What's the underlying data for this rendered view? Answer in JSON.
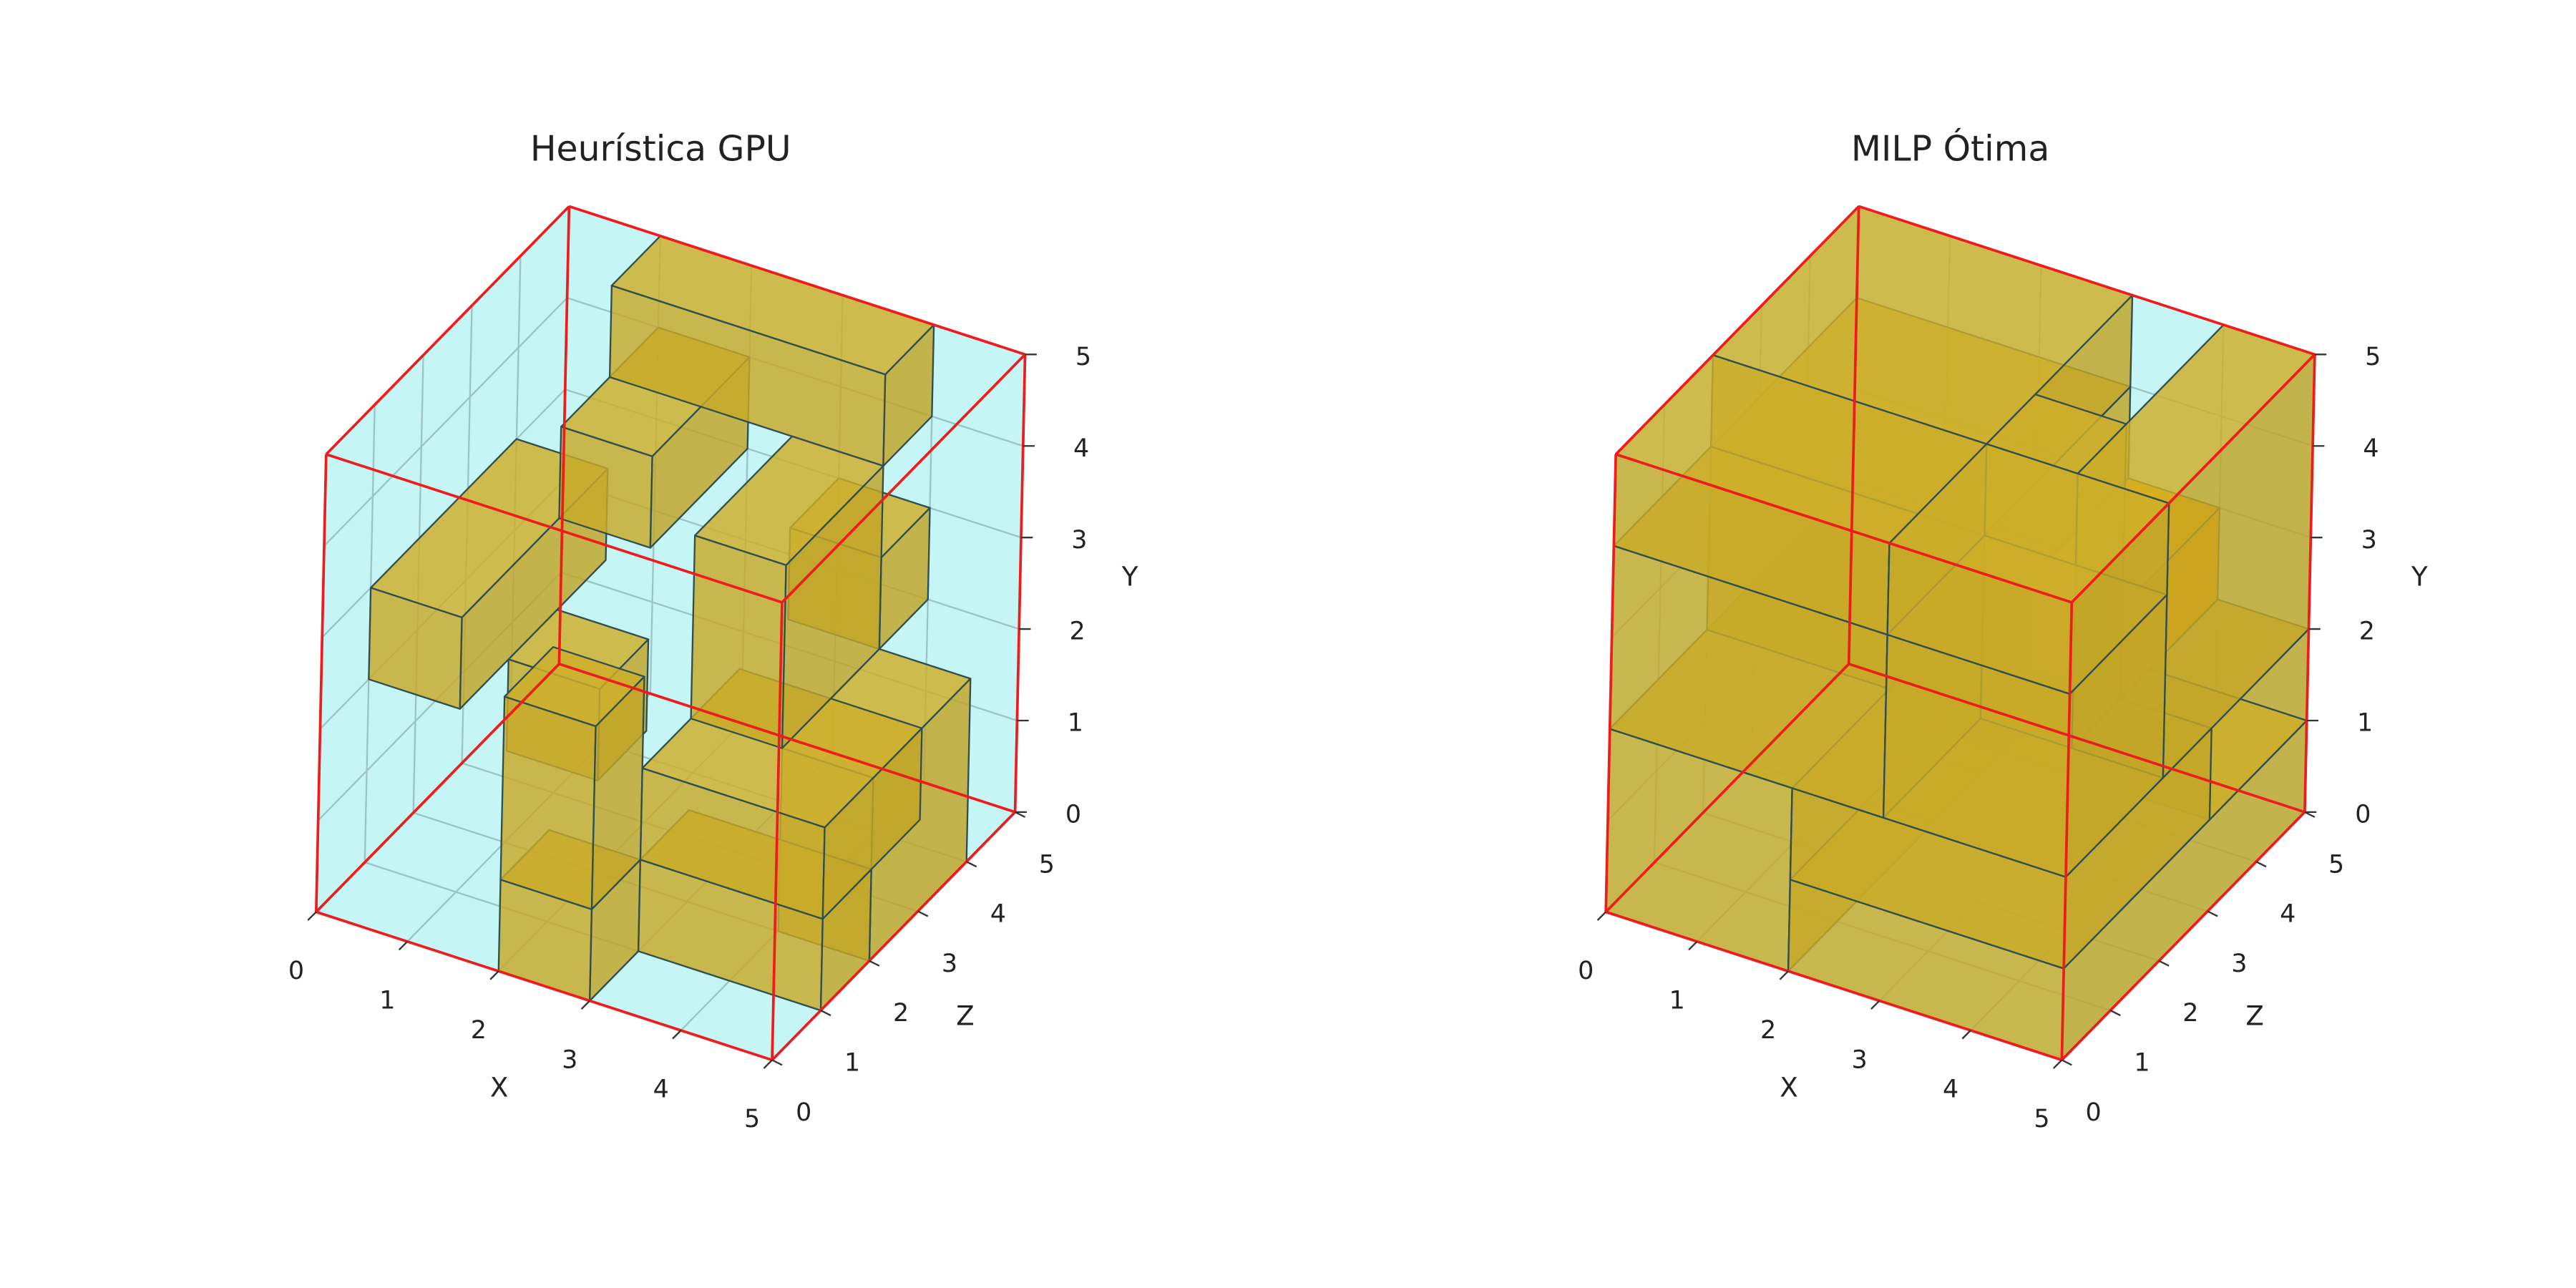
{
  "chart_data": [
    {
      "type": "box3d",
      "title": "Heurística GPU",
      "xlabel": "X",
      "ylabel": "Y",
      "zlabel": "Z",
      "xlim": [
        0,
        5
      ],
      "ylim": [
        0,
        5
      ],
      "zlim": [
        0,
        5
      ],
      "xticks": [
        0,
        1,
        2,
        3,
        4,
        5
      ],
      "yticks": [
        0,
        1,
        2,
        3,
        4,
        5
      ],
      "zticks": [
        0,
        1,
        2,
        3,
        4,
        5
      ],
      "color": "#c8aa28",
      "edgecolor": "#2f4f4f",
      "pane_color": "#c2f4f4",
      "frame_color": "#ee1c1c",
      "grid": true,
      "boxes": [
        {
          "x": 2,
          "y": 0,
          "z": 0,
          "dx": 1,
          "dy": 1,
          "dz": 1
        },
        {
          "x": 3,
          "y": 0,
          "z": 1,
          "dx": 2,
          "dy": 1,
          "dz": 1
        },
        {
          "x": 4,
          "y": 0,
          "z": 2,
          "dx": 1,
          "dy": 2,
          "dz": 2
        },
        {
          "x": 1,
          "y": 1,
          "z": 2,
          "dx": 1,
          "dy": 1,
          "dz": 1
        },
        {
          "x": 3,
          "y": 1,
          "z": 1,
          "dx": 2,
          "dy": 1,
          "dz": 2
        },
        {
          "x": 0,
          "y": 2,
          "z": 1,
          "dx": 1,
          "dy": 1,
          "dz": 3
        },
        {
          "x": 3,
          "y": 2,
          "z": 2,
          "dx": 1,
          "dy": 2,
          "dz": 2
        },
        {
          "x": 3,
          "y": 2,
          "z": 4,
          "dx": 1,
          "dy": 1,
          "dz": 1
        },
        {
          "x": 1,
          "y": 3,
          "z": 3,
          "dx": 1,
          "dy": 1,
          "dz": 2
        },
        {
          "x": 2,
          "y": 1,
          "z": 0,
          "dx": 1,
          "dy": 2,
          "dz": 1
        },
        {
          "x": 1,
          "y": 4,
          "z": 4,
          "dx": 3,
          "dy": 1,
          "dz": 1
        }
      ]
    },
    {
      "type": "box3d",
      "title": "MILP Ótima",
      "xlabel": "X",
      "ylabel": "Y",
      "zlabel": "Z",
      "xlim": [
        0,
        5
      ],
      "ylim": [
        0,
        5
      ],
      "zlim": [
        0,
        5
      ],
      "xticks": [
        0,
        1,
        2,
        3,
        4,
        5
      ],
      "yticks": [
        0,
        1,
        2,
        3,
        4,
        5
      ],
      "zticks": [
        0,
        1,
        2,
        3,
        4,
        5
      ],
      "color": "#c8aa28",
      "edgecolor": "#2f4f4f",
      "pane_color": "#c2f4f4",
      "frame_color": "#ee1c1c",
      "grid": true,
      "boxes": [
        {
          "x": 0,
          "y": 0,
          "z": 0,
          "dx": 2,
          "dy": 2,
          "dz": 5
        },
        {
          "x": 2,
          "y": 0,
          "z": 0,
          "dx": 3,
          "dy": 1,
          "dz": 5
        },
        {
          "x": 2,
          "y": 1,
          "z": 0,
          "dx": 3,
          "dy": 1,
          "dz": 3
        },
        {
          "x": 2,
          "y": 1,
          "z": 3,
          "dx": 3,
          "dy": 1,
          "dz": 2
        },
        {
          "x": 0,
          "y": 2,
          "z": 0,
          "dx": 3,
          "dy": 2,
          "dz": 2
        },
        {
          "x": 3,
          "y": 2,
          "z": 0,
          "dx": 2,
          "dy": 2,
          "dz": 2
        },
        {
          "x": 0,
          "y": 2,
          "z": 2,
          "dx": 3,
          "dy": 2,
          "dz": 3
        },
        {
          "x": 3,
          "y": 2,
          "z": 3,
          "dx": 1,
          "dy": 1,
          "dz": 2,
          "color": "#ffa500"
        },
        {
          "x": 3,
          "y": 2,
          "z": 2,
          "dx": 1,
          "dy": 3,
          "dz": 1
        },
        {
          "x": 4,
          "y": 2,
          "z": 2,
          "dx": 1,
          "dy": 3,
          "dz": 3
        },
        {
          "x": 0,
          "y": 4,
          "z": 0,
          "dx": 3,
          "dy": 1,
          "dz": 2
        },
        {
          "x": 3,
          "y": 4,
          "z": 0,
          "dx": 2,
          "dy": 1,
          "dz": 2
        },
        {
          "x": 0,
          "y": 4,
          "z": 2,
          "dx": 3,
          "dy": 1,
          "dz": 3
        }
      ]
    }
  ]
}
